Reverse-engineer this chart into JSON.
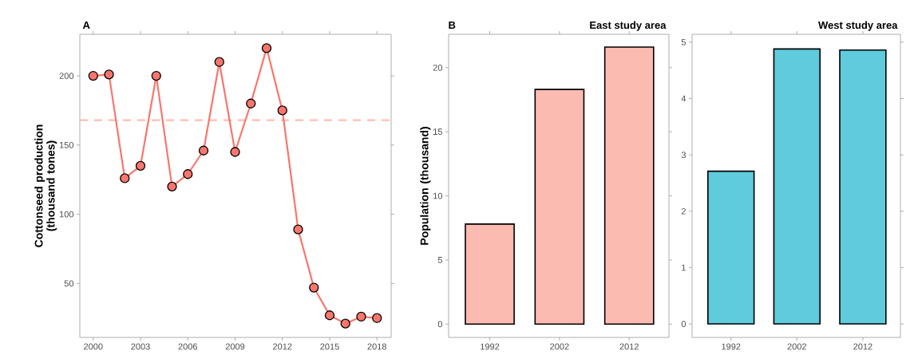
{
  "chart_data": [
    {
      "type": "line",
      "title": "A",
      "ylabel": "Cottonseed production (thousand tones)",
      "x": [
        2000,
        2001,
        2002,
        2003,
        2004,
        2005,
        2006,
        2007,
        2008,
        2009,
        2010,
        2011,
        2012,
        2013,
        2014,
        2015,
        2016,
        2017,
        2018
      ],
      "series": [
        {
          "color": "#f8766d",
          "values": [
            200,
            201,
            126,
            135,
            200,
            120,
            129,
            146,
            210,
            145,
            180,
            220,
            175,
            89,
            47,
            27,
            21,
            26,
            25
          ]
        }
      ],
      "xlim": [
        1999.15,
        2018.9
      ],
      "xticks": [
        2000,
        2003,
        2006,
        2009,
        2012,
        2015,
        2018
      ],
      "ylim": [
        11,
        230
      ],
      "yticks": [
        50,
        100,
        150,
        200
      ],
      "ref_lines": [
        {
          "axis": "y",
          "value": 168,
          "color": "#ffbcb3",
          "line_style": "dashed"
        }
      ],
      "marker": "circle",
      "line_style": "solid"
    },
    {
      "type": "bar",
      "title": "East study area",
      "annotations": [
        "B"
      ],
      "ylabel": "Population (thousand)",
      "categories": [
        "1992",
        "2002",
        "2012"
      ],
      "values": [
        7.8,
        18.3,
        21.6
      ],
      "color": "#fcbbb1",
      "ylim": [
        -1.04,
        22.6
      ],
      "yticks": [
        0,
        5,
        10,
        15,
        20
      ]
    },
    {
      "type": "bar",
      "title": "West study area",
      "categories": [
        "1992",
        "2002",
        "2012"
      ],
      "values": [
        2.71,
        4.88,
        4.86
      ],
      "color": "#5fcbdd",
      "ylim": [
        -0.24,
        5.14
      ],
      "yticks": [
        0,
        1,
        2,
        3,
        4,
        5
      ]
    }
  ]
}
